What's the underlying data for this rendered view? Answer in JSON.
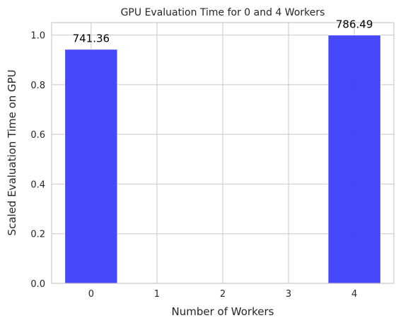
{
  "chart_data": {
    "type": "bar",
    "title": "GPU Evaluation Time for 0 and 4 Workers",
    "xlabel": "Number of Workers",
    "ylabel": "Scaled Evaluation Time on GPU",
    "x_ticks": [
      "0",
      "1",
      "2",
      "3",
      "4"
    ],
    "y_ticks": [
      "0.0",
      "0.2",
      "0.4",
      "0.6",
      "0.8",
      "1.0"
    ],
    "xlim": [
      -0.6,
      4.6
    ],
    "ylim": [
      0,
      1.05
    ],
    "grid": true,
    "bar_width": 0.8,
    "bar_color": "#3d3dfc",
    "series": [
      {
        "x": [
          0,
          4
        ],
        "values": [
          0.9426,
          1.0
        ],
        "data_labels": [
          "741.36",
          "786.49"
        ]
      }
    ]
  }
}
